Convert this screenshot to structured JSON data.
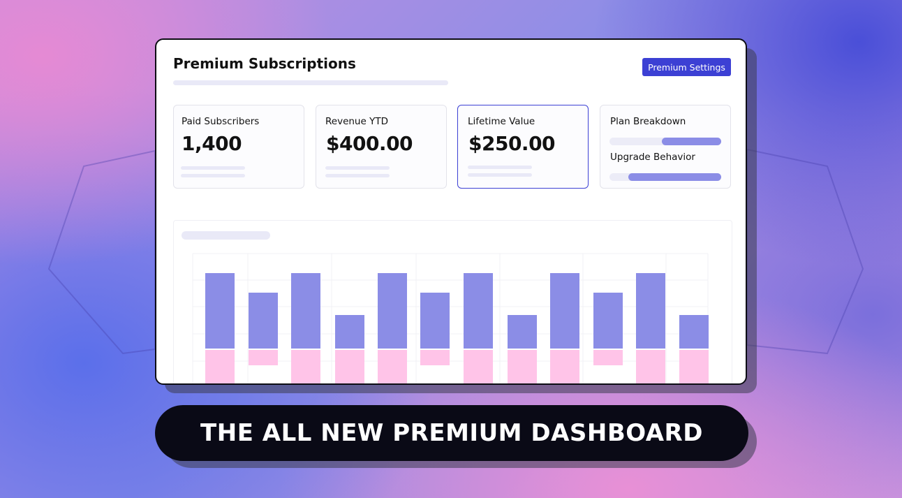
{
  "header": {
    "title": "Premium Subscriptions",
    "button": "Premium Settings"
  },
  "metrics": [
    {
      "label": "Paid Subscribers",
      "value": "1,400"
    },
    {
      "label": "Revenue YTD",
      "value": "$400.00"
    },
    {
      "label": "Lifetime Value",
      "value": "$250.00"
    }
  ],
  "breakdown": {
    "plan": "Plan Breakdown",
    "upgrade": "Upgrade Behavior"
  },
  "banner": "THE ALL NEW PREMIUM DASHBOARD"
}
